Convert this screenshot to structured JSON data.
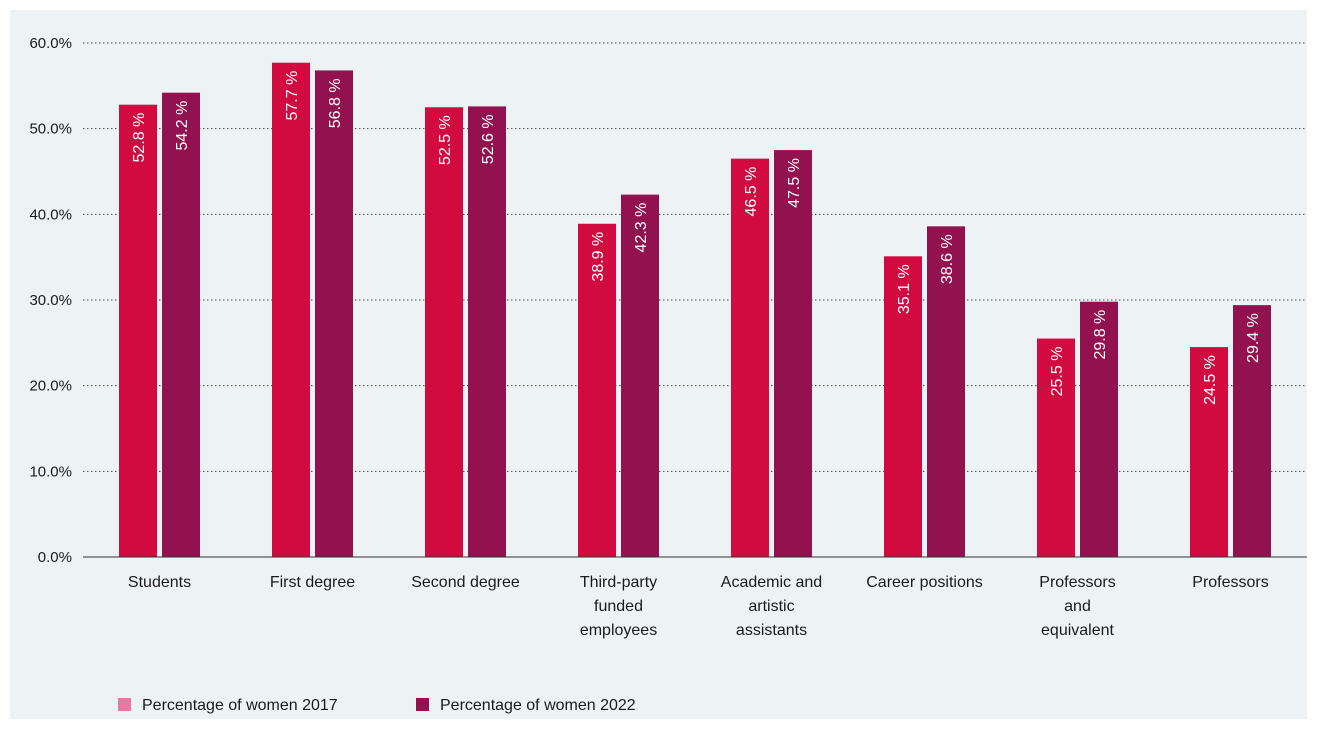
{
  "chart_data": {
    "type": "bar",
    "categories": [
      [
        "Students"
      ],
      [
        "First degree"
      ],
      [
        "Second degree"
      ],
      [
        "Third-party",
        "funded",
        "employees"
      ],
      [
        "Academic and",
        "artistic",
        "assistants"
      ],
      [
        "Career positions"
      ],
      [
        "Professors",
        "and",
        "equivalent"
      ],
      [
        "Professors"
      ]
    ],
    "series": [
      {
        "name": "Percentage of women 2017",
        "values": [
          52.8,
          57.7,
          52.5,
          38.9,
          46.5,
          35.1,
          25.5,
          24.5
        ],
        "labels": [
          "52.8 %",
          "57.7 %",
          "52.5 %",
          "38.9 %",
          "46.5 %",
          "35.1 %",
          "25.5 %",
          "24.5 %"
        ],
        "color": "#d10a3f",
        "legend_color": "#e8789f"
      },
      {
        "name": "Percentage of women 2022",
        "values": [
          54.2,
          56.8,
          52.6,
          42.3,
          47.5,
          38.6,
          29.8,
          29.4
        ],
        "labels": [
          "54.2 %",
          "56.8 %",
          "52.6 %",
          "42.3 %",
          "47.5 %",
          "38.6 %",
          "29.8 %",
          "29.4 %"
        ],
        "color": "#92114f",
        "legend_color": "#92114f"
      }
    ],
    "yticks": [
      "0.0%",
      "10.0%",
      "20.0%",
      "30.0%",
      "40.0%",
      "50.0%",
      "60.0%"
    ],
    "ylim": [
      0,
      60
    ],
    "grid": true,
    "grid_style": "dotted",
    "legend_position": "bottom-left",
    "background": "#edf2f4"
  }
}
